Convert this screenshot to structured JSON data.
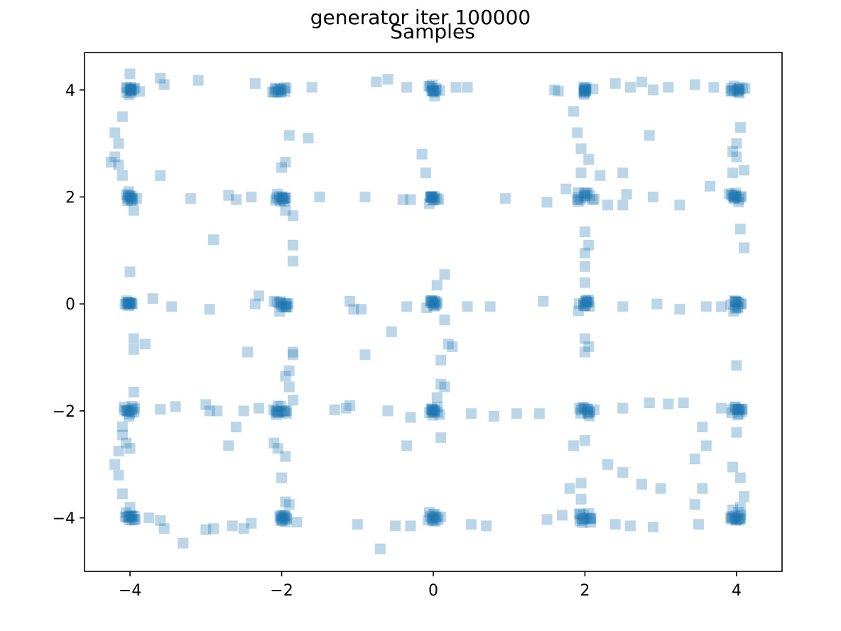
{
  "chart_data": {
    "type": "scatter",
    "suptitle": "generator iter 100000",
    "title": "Samples",
    "xlabel": "",
    "ylabel": "",
    "xlim": [
      -4.6,
      4.6
    ],
    "ylim": [
      -5.0,
      4.7
    ],
    "xticks": [
      -4,
      -2,
      0,
      2,
      4
    ],
    "xtick_labels": [
      "−4",
      "−2",
      "0",
      "2",
      "4"
    ],
    "yticks": [
      4,
      2,
      0,
      -2,
      -4
    ],
    "ytick_labels": [
      "4",
      "2",
      "0",
      "−2",
      "−4"
    ],
    "grid": false,
    "marker": "square",
    "marker_color": "#1f77b4",
    "marker_alpha": 0.3,
    "clusters": [
      {
        "x": -4,
        "y": 4
      },
      {
        "x": -2,
        "y": 4
      },
      {
        "x": 0,
        "y": 4
      },
      {
        "x": 2,
        "y": 4
      },
      {
        "x": 4,
        "y": 4
      },
      {
        "x": -4,
        "y": 2
      },
      {
        "x": -2,
        "y": 2
      },
      {
        "x": 0,
        "y": 2
      },
      {
        "x": 2,
        "y": 2
      },
      {
        "x": 4,
        "y": 2
      },
      {
        "x": -4,
        "y": 0
      },
      {
        "x": -2,
        "y": 0
      },
      {
        "x": 0,
        "y": 0
      },
      {
        "x": 2,
        "y": 0
      },
      {
        "x": 4,
        "y": 0
      },
      {
        "x": -4,
        "y": -2
      },
      {
        "x": -2,
        "y": -2
      },
      {
        "x": 0,
        "y": -2
      },
      {
        "x": 2,
        "y": -2
      },
      {
        "x": 4,
        "y": -2
      },
      {
        "x": -4,
        "y": -4
      },
      {
        "x": -2,
        "y": -4
      },
      {
        "x": 0,
        "y": -4
      },
      {
        "x": 2,
        "y": -4
      },
      {
        "x": 4,
        "y": -4
      }
    ],
    "scatter_points": [
      [
        -3.3,
        -4.47
      ],
      [
        -3.0,
        -4.22
      ],
      [
        -2.9,
        -4.2
      ],
      [
        -2.65,
        -4.15
      ],
      [
        -2.5,
        -4.2
      ],
      [
        -2.4,
        -4.1
      ],
      [
        -1.8,
        -4.08
      ],
      [
        -1.0,
        -4.12
      ],
      [
        -0.5,
        -4.15
      ],
      [
        -0.7,
        -4.58
      ],
      [
        -0.3,
        -4.15
      ],
      [
        0.5,
        -4.12
      ],
      [
        0.7,
        -4.15
      ],
      [
        1.5,
        -4.03
      ],
      [
        1.7,
        -3.95
      ],
      [
        2.4,
        -4.12
      ],
      [
        2.6,
        -4.15
      ],
      [
        2.9,
        -4.17
      ],
      [
        3.5,
        -4.12
      ],
      [
        -3.75,
        -4.0
      ],
      [
        -3.55,
        -4.2
      ],
      [
        -3.6,
        -4.05
      ],
      [
        -4.2,
        -3.0
      ],
      [
        -4.15,
        -2.75
      ],
      [
        -4.1,
        -2.45
      ],
      [
        -4.05,
        -2.6
      ],
      [
        -4.0,
        -2.7
      ],
      [
        -4.1,
        -3.55
      ],
      [
        -4.0,
        -3.8
      ],
      [
        -4.15,
        -3.2
      ],
      [
        -4.1,
        -2.3
      ],
      [
        -3.95,
        -1.65
      ],
      [
        -3.6,
        -1.97
      ],
      [
        -3.4,
        -1.92
      ],
      [
        -3.0,
        -1.88
      ],
      [
        -2.85,
        -2.0
      ],
      [
        -2.95,
        -2.0
      ],
      [
        -2.6,
        -2.3
      ],
      [
        -2.5,
        -2.0
      ],
      [
        -2.3,
        -1.95
      ],
      [
        -1.3,
        -1.98
      ],
      [
        -1.15,
        -1.95
      ],
      [
        -1.1,
        -1.9
      ],
      [
        -0.6,
        -2.0
      ],
      [
        0.5,
        -2.05
      ],
      [
        0.8,
        -2.1
      ],
      [
        1.1,
        -2.05
      ],
      [
        1.4,
        -2.05
      ],
      [
        2.5,
        -1.95
      ],
      [
        2.85,
        -1.85
      ],
      [
        3.1,
        -1.87
      ],
      [
        3.3,
        -1.85
      ],
      [
        3.8,
        -1.95
      ],
      [
        -0.3,
        -2.12
      ],
      [
        -0.35,
        -2.65
      ],
      [
        -2.7,
        -2.65
      ],
      [
        -2.1,
        -2.6
      ],
      [
        -2.05,
        -2.7
      ],
      [
        -1.95,
        -2.85
      ],
      [
        -2.0,
        -3.25
      ],
      [
        -1.95,
        -3.7
      ],
      [
        -1.9,
        -3.75
      ],
      [
        -1.85,
        -1.8
      ],
      [
        -1.9,
        -1.55
      ],
      [
        -1.95,
        -1.35
      ],
      [
        -1.9,
        -1.25
      ],
      [
        -1.85,
        -0.95
      ],
      [
        -1.85,
        -0.9
      ],
      [
        -2.45,
        -0.9
      ],
      [
        -0.9,
        -0.95
      ],
      [
        0.1,
        -1.05
      ],
      [
        0.1,
        -1.5
      ],
      [
        0.15,
        -1.55
      ],
      [
        0.05,
        -1.75
      ],
      [
        0.2,
        -0.75
      ],
      [
        0.25,
        -0.8
      ],
      [
        0.15,
        -0.3
      ],
      [
        0.1,
        -2.5
      ],
      [
        -0.55,
        -0.52
      ],
      [
        1.85,
        -2.65
      ],
      [
        2.0,
        -2.55
      ],
      [
        1.95,
        -3.35
      ],
      [
        1.95,
        -3.65
      ],
      [
        1.8,
        -3.45
      ],
      [
        2.3,
        -3.0
      ],
      [
        2.5,
        -3.15
      ],
      [
        2.75,
        -3.37
      ],
      [
        3.0,
        -3.45
      ],
      [
        3.45,
        -2.9
      ],
      [
        3.55,
        -2.3
      ],
      [
        3.6,
        -2.65
      ],
      [
        3.55,
        -3.45
      ],
      [
        3.45,
        -3.75
      ],
      [
        4.0,
        -2.4
      ],
      [
        4.0,
        -1.15
      ],
      [
        3.95,
        -3.05
      ],
      [
        4.05,
        -3.25
      ],
      [
        4.1,
        -3.6
      ],
      [
        3.95,
        -3.85
      ],
      [
        4.05,
        -3.8
      ],
      [
        3.95,
        -4.0
      ],
      [
        -3.8,
        -0.75
      ],
      [
        -3.95,
        -0.65
      ],
      [
        -3.95,
        -0.85
      ],
      [
        -4.0,
        0.6
      ],
      [
        -3.7,
        0.1
      ],
      [
        -3.45,
        -0.05
      ],
      [
        -2.95,
        -0.1
      ],
      [
        -2.3,
        0.15
      ],
      [
        -2.35,
        0.0
      ],
      [
        -2.1,
        0.05
      ],
      [
        -1.1,
        0.05
      ],
      [
        -1.05,
        -0.1
      ],
      [
        -0.95,
        -0.1
      ],
      [
        -0.35,
        -0.05
      ],
      [
        0.45,
        -0.05
      ],
      [
        0.75,
        -0.05
      ],
      [
        1.45,
        0.05
      ],
      [
        2.5,
        -0.05
      ],
      [
        2.95,
        0.0
      ],
      [
        3.25,
        -0.1
      ],
      [
        3.6,
        -0.05
      ],
      [
        3.8,
        -0.05
      ],
      [
        2.0,
        0.4
      ],
      [
        2.0,
        -0.65
      ],
      [
        2.05,
        -0.8
      ],
      [
        2.0,
        -0.9
      ],
      [
        0.15,
        0.55
      ],
      [
        0.05,
        0.35
      ],
      [
        -3.6,
        2.4
      ],
      [
        -3.2,
        1.97
      ],
      [
        -2.9,
        1.2
      ],
      [
        -2.7,
        2.03
      ],
      [
        -2.6,
        1.95
      ],
      [
        -2.4,
        2.0
      ],
      [
        -1.5,
        2.0
      ],
      [
        -0.9,
        2.0
      ],
      [
        -0.4,
        1.95
      ],
      [
        -0.3,
        1.95
      ],
      [
        0.95,
        1.97
      ],
      [
        1.5,
        1.9
      ],
      [
        1.75,
        2.15
      ],
      [
        2.3,
        1.85
      ],
      [
        2.5,
        1.85
      ],
      [
        2.55,
        2.05
      ],
      [
        2.9,
        2.0
      ],
      [
        3.25,
        1.85
      ],
      [
        3.65,
        2.2
      ],
      [
        -1.95,
        1.75
      ],
      [
        -1.85,
        1.65
      ],
      [
        -1.85,
        1.1
      ],
      [
        -1.85,
        0.8
      ],
      [
        -0.1,
        2.45
      ],
      [
        -0.15,
        2.8
      ],
      [
        1.95,
        2.45
      ],
      [
        2.05,
        2.7
      ],
      [
        2.2,
        2.4
      ],
      [
        2.0,
        1.35
      ],
      [
        2.05,
        1.1
      ],
      [
        2.0,
        0.95
      ],
      [
        2.0,
        0.7
      ],
      [
        2.85,
        3.15
      ],
      [
        2.5,
        2.45
      ],
      [
        4.05,
        1.4
      ],
      [
        4.1,
        1.05
      ],
      [
        -4.25,
        2.65
      ],
      [
        -4.2,
        2.75
      ],
      [
        -4.15,
        2.6
      ],
      [
        -4.1,
        2.4
      ],
      [
        -4.2,
        3.2
      ],
      [
        -4.15,
        3.0
      ],
      [
        -4.1,
        3.5
      ],
      [
        -3.95,
        1.75
      ],
      [
        -1.9,
        3.15
      ],
      [
        -1.65,
        3.1
      ],
      [
        -2.0,
        2.55
      ],
      [
        -1.95,
        2.65
      ],
      [
        1.85,
        3.6
      ],
      [
        1.9,
        3.2
      ],
      [
        1.95,
        2.9
      ],
      [
        4.0,
        3.0
      ],
      [
        4.05,
        3.3
      ],
      [
        4.1,
        2.5
      ],
      [
        3.95,
        2.85
      ],
      [
        3.95,
        2.45
      ],
      [
        4.0,
        2.75
      ],
      [
        -3.6,
        4.22
      ],
      [
        -3.1,
        4.18
      ],
      [
        -2.35,
        4.12
      ],
      [
        -1.6,
        4.05
      ],
      [
        -0.75,
        4.15
      ],
      [
        -0.6,
        4.2
      ],
      [
        -0.35,
        4.05
      ],
      [
        0.3,
        4.05
      ],
      [
        0.45,
        4.05
      ],
      [
        1.6,
        4.0
      ],
      [
        2.4,
        4.12
      ],
      [
        2.6,
        4.05
      ],
      [
        2.75,
        4.15
      ],
      [
        3.1,
        4.05
      ],
      [
        3.45,
        4.1
      ],
      [
        3.7,
        4.05
      ],
      [
        -4.0,
        4.3
      ],
      [
        -4.05,
        4.05
      ],
      [
        -3.55,
        4.1
      ],
      [
        1.65,
        3.98
      ],
      [
        2.9,
        4.0
      ]
    ]
  }
}
